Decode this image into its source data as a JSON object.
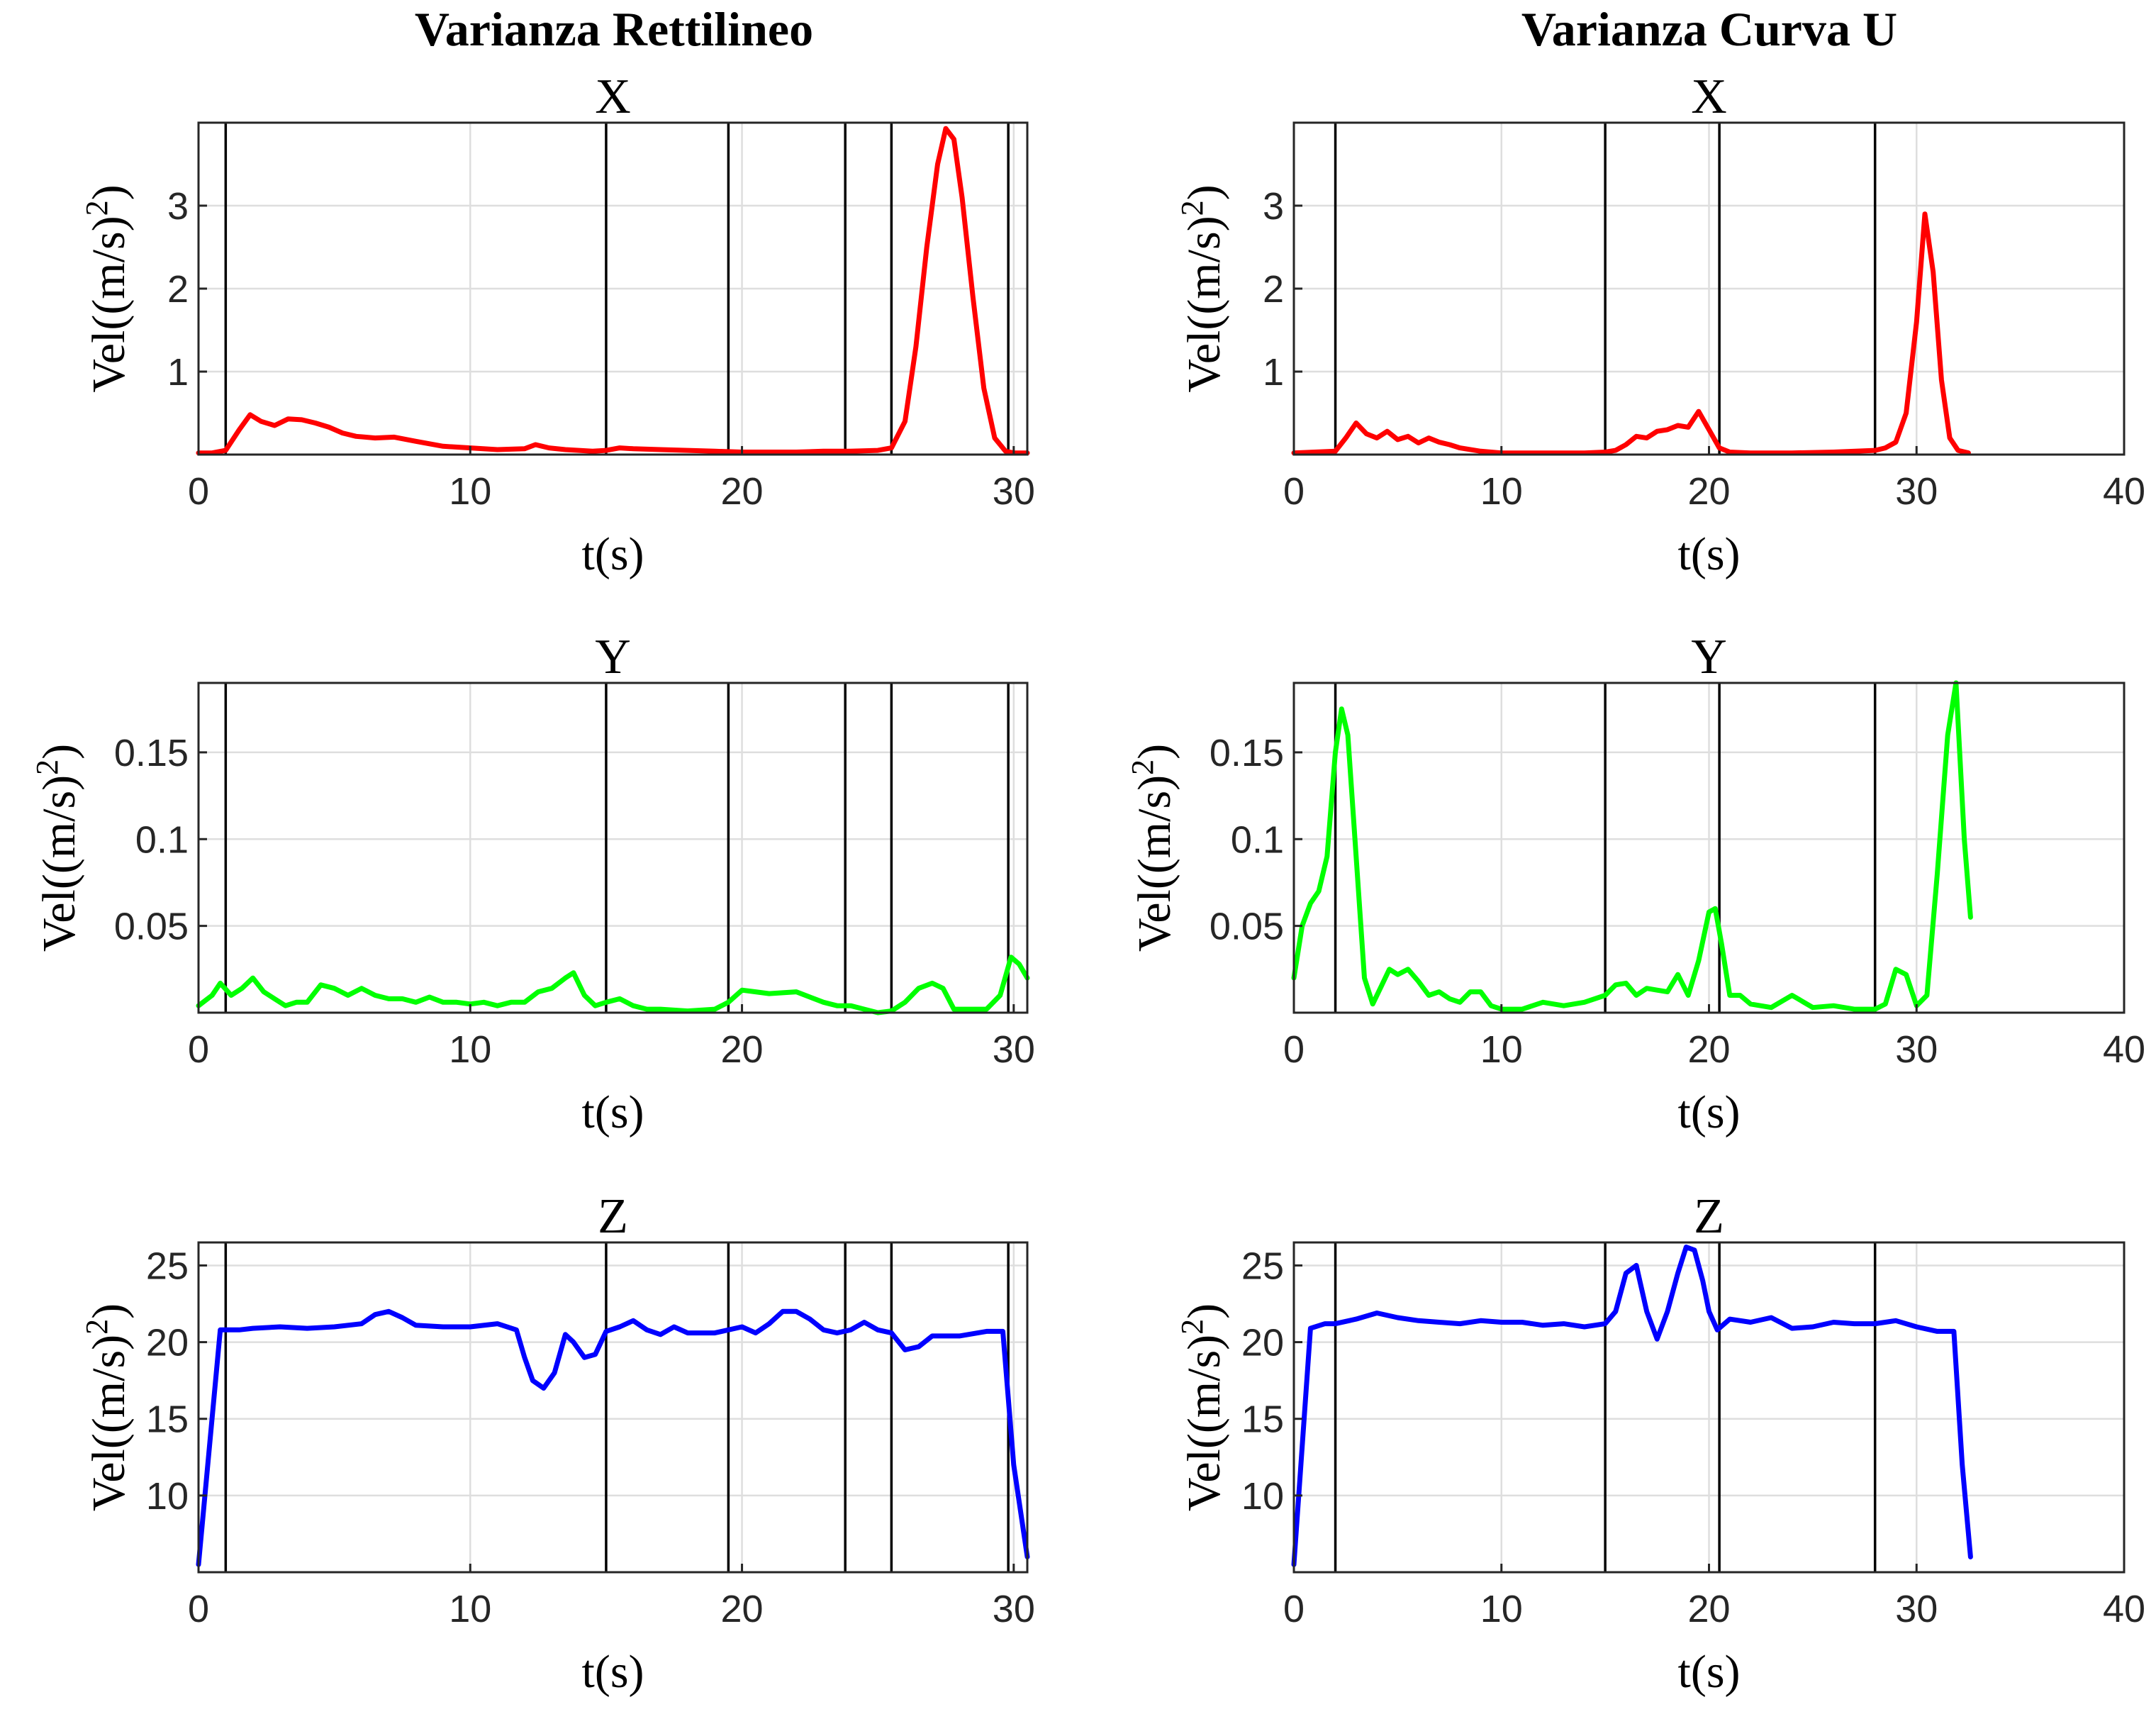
{
  "figure": {
    "column_titles": [
      "Varianza Rettilineo",
      "Varianza Curva U"
    ]
  },
  "colors": {
    "X": "#ff0000",
    "Y": "#00ff00",
    "Z": "#0000ff"
  },
  "chart_data": [
    {
      "id": "rett-x",
      "type": "line",
      "column": 0,
      "row": 0,
      "title": "X",
      "xlabel": "t(s)",
      "ylabel": "Vel((m/s)^2)",
      "xlim": [
        0,
        30.5
      ],
      "ylim": [
        0,
        4.0
      ],
      "xticks": [
        0,
        10,
        20,
        30
      ],
      "yticks": [
        1,
        2,
        3
      ],
      "grid": true,
      "vlines": [
        1.0,
        15.0,
        19.5,
        23.8,
        25.5,
        29.8
      ],
      "series": [
        {
          "color": "#ff0000",
          "x": [
            0,
            0.5,
            1.0,
            1.5,
            1.9,
            2.3,
            2.8,
            3.3,
            3.8,
            4.3,
            4.8,
            5.3,
            5.8,
            6.5,
            7.2,
            8.0,
            9.0,
            10.0,
            11.0,
            12.0,
            12.4,
            12.9,
            13.5,
            14.5,
            15.0,
            15.5,
            16.0,
            17.0,
            18.0,
            19.0,
            20.0,
            21.0,
            22.0,
            23.0,
            24.0,
            25.0,
            25.5,
            26.0,
            26.4,
            26.8,
            27.2,
            27.5,
            27.8,
            28.1,
            28.5,
            28.9,
            29.3,
            29.7,
            30.0,
            30.5
          ],
          "y": [
            0.02,
            0.02,
            0.05,
            0.3,
            0.48,
            0.4,
            0.35,
            0.43,
            0.42,
            0.38,
            0.33,
            0.26,
            0.22,
            0.2,
            0.21,
            0.16,
            0.1,
            0.08,
            0.06,
            0.07,
            0.12,
            0.08,
            0.06,
            0.04,
            0.05,
            0.08,
            0.07,
            0.06,
            0.05,
            0.04,
            0.03,
            0.03,
            0.03,
            0.04,
            0.04,
            0.05,
            0.08,
            0.4,
            1.3,
            2.5,
            3.5,
            3.93,
            3.8,
            3.1,
            1.9,
            0.8,
            0.2,
            0.04,
            0.02,
            0.02
          ]
        }
      ]
    },
    {
      "id": "curva-x",
      "type": "line",
      "column": 1,
      "row": 0,
      "title": "X",
      "xlabel": "t(s)",
      "ylabel": "Vel((m/s)^2)",
      "xlim": [
        0,
        40
      ],
      "ylim": [
        0,
        4.0
      ],
      "xticks": [
        0,
        10,
        20,
        30,
        40
      ],
      "yticks": [
        1,
        2,
        3
      ],
      "grid": true,
      "vlines": [
        2.0,
        15.0,
        20.5,
        28.0
      ],
      "series": [
        {
          "color": "#ff0000",
          "x": [
            0,
            1.0,
            2.0,
            2.5,
            3.0,
            3.5,
            4.0,
            4.5,
            5.0,
            5.5,
            6.0,
            6.5,
            7.0,
            7.5,
            8.0,
            9.0,
            10.0,
            11.0,
            12.0,
            13.0,
            14.0,
            15.0,
            15.5,
            16.0,
            16.5,
            17.0,
            17.5,
            18.0,
            18.5,
            19.0,
            19.5,
            20.0,
            20.5,
            21.0,
            22.0,
            24.0,
            26.0,
            28.0,
            28.5,
            29.0,
            29.5,
            30.0,
            30.4,
            30.8,
            31.2,
            31.6,
            32.0,
            32.5
          ],
          "y": [
            0.02,
            0.03,
            0.04,
            0.2,
            0.38,
            0.25,
            0.2,
            0.28,
            0.18,
            0.22,
            0.14,
            0.2,
            0.15,
            0.12,
            0.08,
            0.04,
            0.02,
            0.02,
            0.02,
            0.02,
            0.02,
            0.03,
            0.05,
            0.12,
            0.22,
            0.2,
            0.28,
            0.3,
            0.35,
            0.33,
            0.52,
            0.3,
            0.08,
            0.03,
            0.02,
            0.02,
            0.03,
            0.05,
            0.08,
            0.15,
            0.5,
            1.6,
            2.9,
            2.2,
            0.9,
            0.2,
            0.05,
            0.02
          ]
        }
      ]
    },
    {
      "id": "rett-y",
      "type": "line",
      "column": 0,
      "row": 1,
      "title": "Y",
      "xlabel": "t(s)",
      "ylabel": "Vel((m/s)^2)",
      "xlim": [
        0,
        30.5
      ],
      "ylim": [
        0,
        0.19
      ],
      "xticks": [
        0,
        10,
        20,
        30
      ],
      "yticks": [
        0.05,
        0.1,
        0.15
      ],
      "grid": true,
      "vlines": [
        1.0,
        15.0,
        19.5,
        23.8,
        25.5,
        29.8
      ],
      "series": [
        {
          "color": "#00ff00",
          "x": [
            0,
            0.5,
            0.8,
            1.2,
            1.6,
            2.0,
            2.4,
            2.8,
            3.2,
            3.6,
            4.0,
            4.5,
            5.0,
            5.5,
            6.0,
            6.5,
            7.0,
            7.5,
            8.0,
            8.5,
            9.0,
            9.5,
            10.0,
            10.5,
            11.0,
            11.5,
            12.0,
            12.5,
            13.0,
            13.5,
            13.8,
            14.2,
            14.6,
            15.0,
            15.5,
            16.0,
            16.5,
            17.0,
            18.0,
            19.0,
            19.5,
            20.0,
            20.5,
            21.0,
            22.0,
            23.0,
            23.5,
            24.0,
            24.5,
            25.0,
            25.5,
            26.0,
            26.5,
            27.0,
            27.4,
            27.8,
            28.5,
            29.0,
            29.5,
            29.9,
            30.2,
            30.5
          ],
          "y": [
            0.004,
            0.01,
            0.017,
            0.01,
            0.014,
            0.02,
            0.012,
            0.008,
            0.004,
            0.006,
            0.006,
            0.016,
            0.014,
            0.01,
            0.014,
            0.01,
            0.008,
            0.008,
            0.006,
            0.009,
            0.006,
            0.006,
            0.005,
            0.006,
            0.004,
            0.006,
            0.006,
            0.012,
            0.014,
            0.02,
            0.023,
            0.01,
            0.004,
            0.006,
            0.008,
            0.004,
            0.002,
            0.002,
            0.001,
            0.002,
            0.006,
            0.013,
            0.012,
            0.011,
            0.012,
            0.006,
            0.004,
            0.004,
            0.002,
            0.0,
            0.001,
            0.006,
            0.014,
            0.017,
            0.014,
            0.002,
            0.002,
            0.002,
            0.01,
            0.032,
            0.028,
            0.02
          ]
        }
      ]
    },
    {
      "id": "curva-y",
      "type": "line",
      "column": 1,
      "row": 1,
      "title": "Y",
      "xlabel": "t(s)",
      "ylabel": "Vel((m/s)^2)",
      "xlim": [
        0,
        40
      ],
      "ylim": [
        0,
        0.19
      ],
      "xticks": [
        0,
        10,
        20,
        30,
        40
      ],
      "yticks": [
        0.05,
        0.1,
        0.15
      ],
      "grid": true,
      "vlines": [
        2.0,
        15.0,
        20.5,
        28.0
      ],
      "series": [
        {
          "color": "#00ff00",
          "x": [
            0,
            0.4,
            0.8,
            1.2,
            1.6,
            2.0,
            2.3,
            2.6,
            3.0,
            3.4,
            3.8,
            4.2,
            4.6,
            5.0,
            5.5,
            6.0,
            6.5,
            7.0,
            7.5,
            8.0,
            8.5,
            9.0,
            9.5,
            10.0,
            11.0,
            12.0,
            13.0,
            14.0,
            15.0,
            15.5,
            16.0,
            16.5,
            17.0,
            17.5,
            18.0,
            18.5,
            19.0,
            19.5,
            20.0,
            20.3,
            20.6,
            21.0,
            21.5,
            22.0,
            23.0,
            24.0,
            25.0,
            26.0,
            27.0,
            28.0,
            28.5,
            29.0,
            29.5,
            30.0,
            30.5,
            31.0,
            31.5,
            31.9,
            32.3,
            32.6
          ],
          "y": [
            0.02,
            0.05,
            0.063,
            0.07,
            0.09,
            0.15,
            0.175,
            0.16,
            0.09,
            0.02,
            0.005,
            0.015,
            0.025,
            0.022,
            0.025,
            0.018,
            0.01,
            0.012,
            0.008,
            0.006,
            0.012,
            0.012,
            0.004,
            0.002,
            0.002,
            0.006,
            0.004,
            0.006,
            0.01,
            0.016,
            0.017,
            0.01,
            0.014,
            0.013,
            0.012,
            0.022,
            0.01,
            0.03,
            0.058,
            0.06,
            0.04,
            0.01,
            0.01,
            0.005,
            0.003,
            0.01,
            0.003,
            0.004,
            0.002,
            0.002,
            0.005,
            0.025,
            0.022,
            0.004,
            0.01,
            0.08,
            0.16,
            0.19,
            0.1,
            0.055
          ]
        }
      ]
    },
    {
      "id": "rett-z",
      "type": "line",
      "column": 0,
      "row": 2,
      "title": "Z",
      "xlabel": "t(s)",
      "ylabel": "Vel((m/s)^2)",
      "xlim": [
        0,
        30.5
      ],
      "ylim": [
        5,
        26.5
      ],
      "xticks": [
        0,
        10,
        20,
        30
      ],
      "yticks": [
        10,
        15,
        20,
        25
      ],
      "grid": true,
      "vlines": [
        1.0,
        15.0,
        19.5,
        23.8,
        25.5,
        29.8
      ],
      "series": [
        {
          "color": "#0000ff",
          "x": [
            0,
            0.8,
            1.5,
            2.0,
            3.0,
            4.0,
            5.0,
            6.0,
            6.5,
            7.0,
            7.5,
            8.0,
            9.0,
            10.0,
            11.0,
            11.7,
            12.0,
            12.3,
            12.7,
            13.1,
            13.5,
            13.8,
            14.2,
            14.6,
            15.0,
            15.5,
            16.0,
            16.5,
            17.0,
            17.5,
            18.0,
            19.0,
            20.0,
            20.5,
            21.0,
            21.5,
            22.0,
            22.5,
            23.0,
            23.5,
            24.0,
            24.5,
            25.0,
            25.5,
            26.0,
            26.5,
            27.0,
            28.0,
            29.0,
            29.6,
            30.0,
            30.5
          ],
          "y": [
            5.5,
            20.8,
            20.8,
            20.9,
            21.0,
            20.9,
            21.0,
            21.2,
            21.8,
            22.0,
            21.6,
            21.1,
            21.0,
            21.0,
            21.2,
            20.8,
            19.0,
            17.5,
            17.0,
            18.0,
            20.5,
            20.0,
            19.0,
            19.2,
            20.7,
            21.0,
            21.4,
            20.8,
            20.5,
            21.0,
            20.6,
            20.6,
            21.0,
            20.6,
            21.2,
            22.0,
            22.0,
            21.5,
            20.8,
            20.6,
            20.8,
            21.3,
            20.8,
            20.6,
            19.5,
            19.7,
            20.4,
            20.4,
            20.7,
            20.7,
            12.0,
            6.0
          ]
        }
      ]
    },
    {
      "id": "curva-z",
      "type": "line",
      "column": 1,
      "row": 2,
      "title": "Z",
      "xlabel": "t(s)",
      "ylabel": "Vel((m/s)^2)",
      "xlim": [
        0,
        40
      ],
      "ylim": [
        5,
        26.5
      ],
      "xticks": [
        0,
        10,
        20,
        30,
        40
      ],
      "yticks": [
        10,
        15,
        20,
        25
      ],
      "grid": true,
      "vlines": [
        2.0,
        15.0,
        20.5,
        28.0
      ],
      "series": [
        {
          "color": "#0000ff",
          "x": [
            0,
            0.8,
            1.5,
            2.0,
            3.0,
            4.0,
            5.0,
            6.0,
            7.0,
            8.0,
            9.0,
            10.0,
            11.0,
            12.0,
            13.0,
            14.0,
            15.0,
            15.5,
            16.0,
            16.5,
            17.0,
            17.5,
            18.0,
            18.5,
            18.9,
            19.3,
            19.7,
            20.0,
            20.4,
            21.0,
            22.0,
            23.0,
            24.0,
            25.0,
            26.0,
            27.0,
            28.0,
            29.0,
            30.0,
            31.0,
            31.8,
            32.2,
            32.6
          ],
          "y": [
            5.5,
            20.9,
            21.2,
            21.2,
            21.5,
            21.9,
            21.6,
            21.4,
            21.3,
            21.2,
            21.4,
            21.3,
            21.3,
            21.1,
            21.2,
            21.0,
            21.2,
            22.0,
            24.5,
            25.0,
            22.0,
            20.2,
            22.0,
            24.5,
            26.2,
            26.0,
            24.0,
            22.0,
            20.8,
            21.5,
            21.3,
            21.6,
            20.9,
            21.0,
            21.3,
            21.2,
            21.2,
            21.4,
            21.0,
            20.7,
            20.7,
            12.0,
            6.0
          ]
        }
      ]
    }
  ]
}
